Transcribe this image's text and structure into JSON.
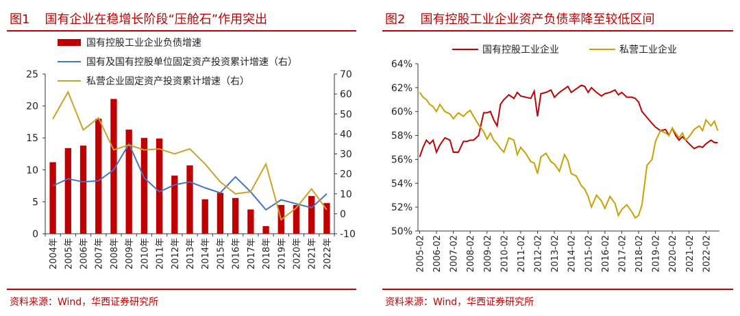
{
  "panels": [
    {
      "title_num": "图1",
      "title_text": "国有企业在稳增长阶段“压舱石”作用突出",
      "source": "资料来源：Wind，华西证券研究所"
    },
    {
      "title_num": "图2",
      "title_text": "国有控股工业企业资产负债率降至较低区间",
      "source": "资料来源：Wind，华西证券研究所"
    }
  ],
  "colors": {
    "red": "#c00000",
    "blue": "#4472c4",
    "gold": "#c9a227",
    "gold2": "#c8a000"
  },
  "chart_data": [
    {
      "type": "bar+line",
      "categories": [
        "2004年",
        "2005年",
        "2006年",
        "2007年",
        "2008年",
        "2009年",
        "2010年",
        "2011年",
        "2012年",
        "2013年",
        "2014年",
        "2015年",
        "2016年",
        "2017年",
        "2018年",
        "2019年",
        "2020年",
        "2021年",
        "2022年"
      ],
      "left_ylim": [
        0,
        25
      ],
      "left_ticks": [
        "0",
        "5",
        "10",
        "15",
        "20",
        "25"
      ],
      "right_ylim": [
        -10,
        70
      ],
      "right_ticks": [
        "-10",
        "0",
        "10",
        "20",
        "30",
        "40",
        "50",
        "60",
        "70"
      ],
      "legend": [
        "国有控股工业企业负债增速",
        "国有及国有控股单位固定资产投资累计增速（右）",
        "私营企业固定资产投资累计增速（右）"
      ],
      "series": [
        {
          "name": "国有控股工业企业负债增速",
          "axis": "left",
          "kind": "bar",
          "values": [
            11.2,
            13.4,
            13.8,
            18.0,
            21.1,
            16.3,
            15.0,
            14.9,
            9.1,
            10.7,
            5.4,
            6.4,
            5.6,
            3.8,
            1.2,
            4.5,
            4.5,
            5.9,
            4.8
          ]
        },
        {
          "name": "国有及国有控股单位固定资产投资累计增速（右）",
          "axis": "right",
          "kind": "line",
          "values": [
            14,
            17.5,
            16,
            16.5,
            22,
            35,
            18,
            11,
            14.5,
            16,
            13,
            10.5,
            18.5,
            11,
            2,
            7,
            5,
            3,
            10
          ]
        },
        {
          "name": "私营企业固定资产投资累计增速（右）",
          "axis": "right",
          "kind": "line",
          "values": [
            47.5,
            61,
            42,
            48,
            32,
            34.5,
            32,
            32.5,
            30,
            32.5,
            25,
            16,
            10,
            11,
            25,
            -3,
            3,
            12.5,
            2
          ]
        }
      ]
    },
    {
      "type": "line",
      "xticks": [
        "2005-02",
        "2006-02",
        "2007-02",
        "2008-02",
        "2009-02",
        "2010-02",
        "2011-02",
        "2012-02",
        "2013-02",
        "2014-02",
        "2015-02",
        "2016-02",
        "2017-02",
        "2018-02",
        "2019-02",
        "2020-02",
        "2021-02",
        "2022-02"
      ],
      "ylim": [
        50,
        64
      ],
      "yticks": [
        "50%",
        "52%",
        "54%",
        "56%",
        "58%",
        "60%",
        "62%",
        "64%"
      ],
      "legend": [
        "国有控股工业企业",
        "私营工业企业"
      ],
      "series": [
        {
          "name": "国有控股工业企业",
          "x": [
            2005.1,
            2005.3,
            2005.5,
            2005.7,
            2005.9,
            2006.1,
            2006.3,
            2006.6,
            2006.9,
            2007.1,
            2007.4,
            2007.7,
            2007.9,
            2008.1,
            2008.3,
            2008.6,
            2008.9,
            2009.1,
            2009.3,
            2009.5,
            2009.7,
            2009.9,
            2010.1,
            2010.4,
            2010.7,
            2010.9,
            2011.1,
            2011.4,
            2011.7,
            2011.9,
            2012.1,
            2012.3,
            2012.6,
            2012.9,
            2013.1,
            2013.4,
            2013.7,
            2013.9,
            2014.1,
            2014.4,
            2014.7,
            2014.9,
            2015.1,
            2015.3,
            2015.6,
            2015.9,
            2016.1,
            2016.4,
            2016.7,
            2016.9,
            2017.1,
            2017.4,
            2017.7,
            2017.9,
            2018.1,
            2018.3,
            2018.6,
            2018.9,
            2019.1,
            2019.4,
            2019.7,
            2019.9,
            2020.1,
            2020.3,
            2020.5,
            2020.7,
            2020.9,
            2021.1,
            2021.4,
            2021.7,
            2021.9,
            2022.1,
            2022.4,
            2022.6,
            2022.8
          ],
          "y": [
            56.2,
            57.0,
            57.6,
            57.3,
            57.6,
            56.6,
            57.2,
            57.8,
            57.6,
            56.6,
            56.6,
            57.5,
            57.5,
            57.6,
            57.6,
            58.0,
            59.9,
            59.9,
            60.0,
            59.3,
            58.8,
            60.6,
            61.0,
            61.4,
            61.1,
            61.6,
            61.3,
            61.2,
            61.1,
            61.7,
            59.6,
            61.5,
            61.6,
            61.8,
            61.2,
            61.6,
            61.9,
            62.1,
            61.6,
            61.9,
            62.2,
            62.1,
            61.6,
            62.0,
            61.6,
            61.3,
            61.5,
            61.6,
            61.8,
            61.4,
            61.6,
            61.2,
            61.2,
            61.1,
            60.8,
            60.0,
            59.5,
            59.0,
            58.7,
            58.4,
            58.5,
            58.0,
            58.6,
            58.0,
            57.6,
            57.9,
            57.6,
            57.3,
            56.9,
            57.1,
            57.0,
            57.3,
            57.6,
            57.4,
            57.4
          ]
        },
        {
          "name": "私营工业企业",
          "x": [
            2005.1,
            2005.3,
            2005.5,
            2005.7,
            2005.9,
            2006.1,
            2006.3,
            2006.6,
            2006.9,
            2007.1,
            2007.4,
            2007.7,
            2007.9,
            2008.1,
            2008.3,
            2008.6,
            2008.9,
            2009.1,
            2009.3,
            2009.5,
            2009.7,
            2009.9,
            2010.1,
            2010.4,
            2010.7,
            2010.9,
            2011.1,
            2011.4,
            2011.7,
            2011.9,
            2012.1,
            2012.3,
            2012.6,
            2012.9,
            2013.1,
            2013.4,
            2013.7,
            2013.9,
            2014.1,
            2014.4,
            2014.7,
            2014.9,
            2015.1,
            2015.3,
            2015.6,
            2015.9,
            2016.1,
            2016.4,
            2016.7,
            2016.9,
            2017.1,
            2017.4,
            2017.7,
            2017.9,
            2018.1,
            2018.3,
            2018.6,
            2018.9,
            2019.1,
            2019.4,
            2019.7,
            2019.9,
            2020.1,
            2020.3,
            2020.5,
            2020.7,
            2020.9,
            2021.1,
            2021.4,
            2021.7,
            2021.9,
            2022.1,
            2022.4,
            2022.6,
            2022.8
          ],
          "y": [
            61.6,
            61.2,
            61.0,
            60.6,
            60.4,
            60.0,
            60.6,
            60.0,
            59.8,
            59.4,
            59.9,
            59.6,
            59.9,
            60.1,
            59.6,
            58.9,
            58.3,
            57.7,
            58.2,
            57.6,
            57.3,
            56.9,
            56.6,
            57.8,
            57.6,
            56.4,
            57.0,
            56.5,
            55.8,
            55.7,
            54.8,
            56.2,
            56.5,
            55.8,
            55.6,
            55.0,
            56.4,
            55.9,
            54.8,
            54.6,
            53.8,
            53.5,
            52.9,
            52.0,
            53.0,
            52.5,
            51.9,
            52.9,
            52.3,
            51.3,
            51.8,
            52.2,
            51.6,
            51.1,
            51.3,
            52.2,
            55.5,
            56.0,
            57.5,
            58.4,
            58.2,
            58.0,
            58.6,
            58.2,
            57.8,
            58.2,
            57.6,
            57.9,
            58.5,
            58.8,
            58.4,
            59.3,
            58.8,
            59.2,
            58.4
          ]
        }
      ]
    }
  ]
}
